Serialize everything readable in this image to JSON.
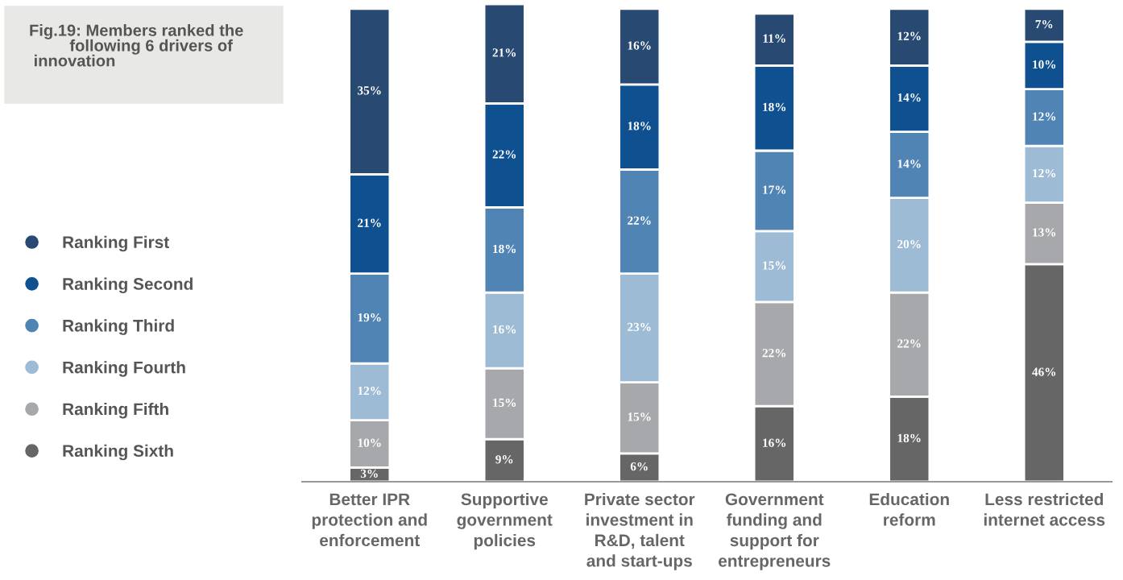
{
  "chart_data": {
    "type": "bar",
    "stacked": true,
    "title": "Fig.19: Members ranked the\n         following 6 drivers of\n innovation",
    "categories": [
      "Better IPR\nprotection and\nenforcement",
      "Supportive\ngovernment\npolicies",
      "Private sector\ninvestment in\nR&D, talent\nand start-ups",
      "Government\nfunding and\nsupport for\nentrepreneurs",
      "Education\nreform",
      "Less restricted\ninternet access"
    ],
    "series": [
      {
        "name": "Ranking Sixth",
        "color": "#666666",
        "values": [
          3,
          9,
          6,
          16,
          18,
          46
        ],
        "value_labels": [
          "3%",
          "9%",
          "6%",
          "16%",
          "18%",
          "46%"
        ]
      },
      {
        "name": "Ranking Fifth",
        "color": "#a7a8ab",
        "values": [
          10,
          15,
          15,
          22,
          22,
          13
        ],
        "value_labels": [
          "10%",
          "15%",
          "15%",
          "22%",
          "22%",
          "13%"
        ]
      },
      {
        "name": "Ranking Fourth",
        "color": "#9dbbd4",
        "values": [
          12,
          16,
          23,
          15,
          20,
          12
        ],
        "value_labels": [
          "12%",
          "16%",
          "23%",
          "15%",
          "20%",
          "12%"
        ]
      },
      {
        "name": "Ranking Third",
        "color": "#5084b5",
        "values": [
          19,
          18,
          22,
          17,
          14,
          12
        ],
        "value_labels": [
          "19%",
          "18%",
          "22%",
          "17%",
          "14%",
          "12%"
        ]
      },
      {
        "name": "Ranking Second",
        "color": "#0f5090",
        "values": [
          21,
          22,
          18,
          18,
          14,
          10
        ],
        "value_labels": [
          "21%",
          "22%",
          "18%",
          "18%",
          "14%",
          "10%"
        ]
      },
      {
        "name": "Ranking First",
        "color": "#284a72",
        "values": [
          35,
          21,
          16,
          11,
          12,
          7
        ],
        "value_labels": [
          "35%",
          "21%",
          "16%",
          "11%",
          "12%",
          "7%"
        ]
      }
    ],
    "legend": "left",
    "grid": false
  }
}
